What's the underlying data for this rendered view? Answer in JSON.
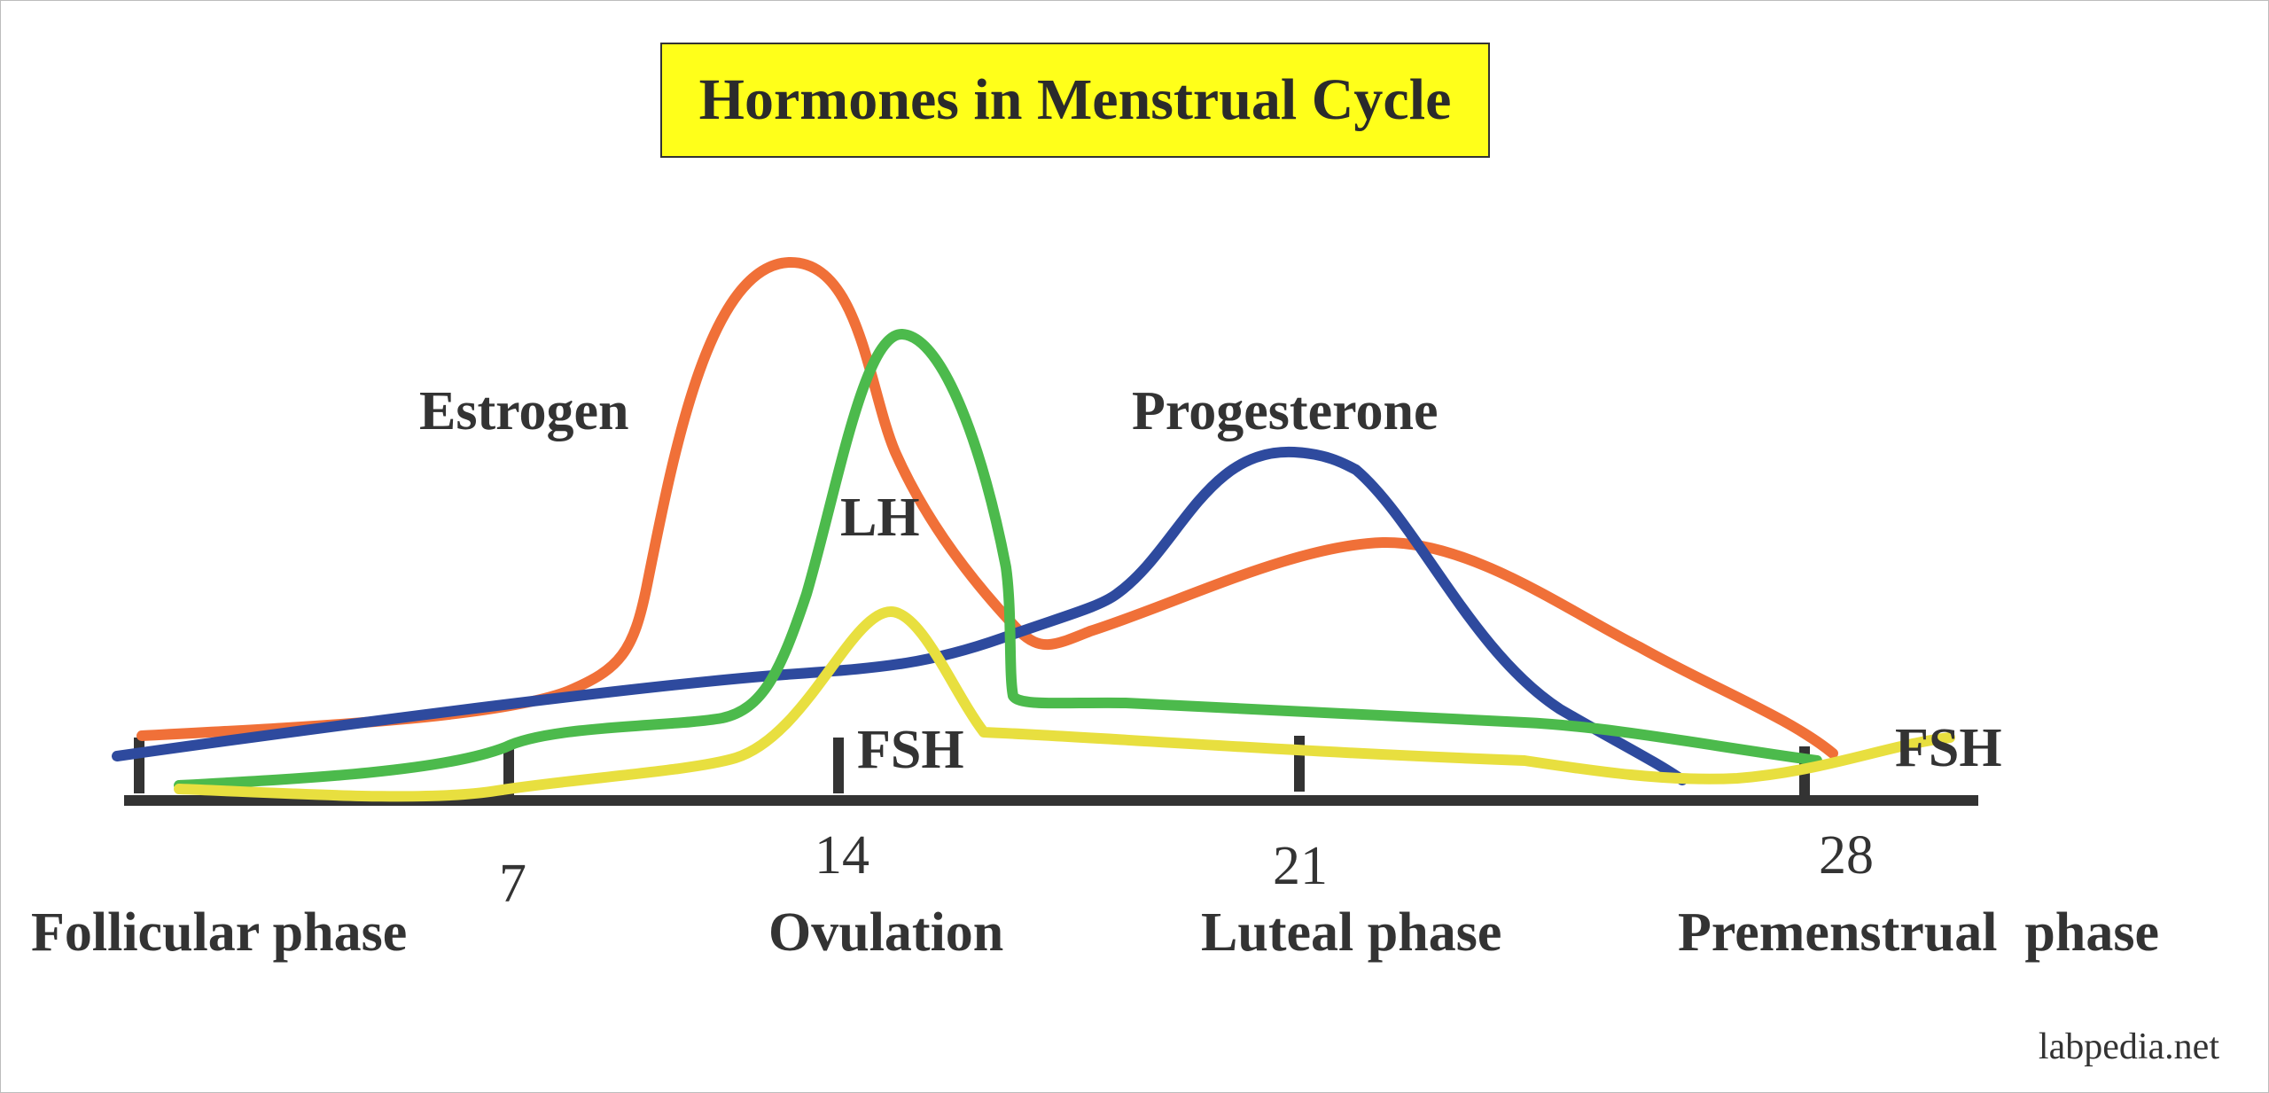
{
  "title": "Hormones in Menstrual Cycle",
  "colors": {
    "estrogen": "#f07038",
    "lh": "#4cba4c",
    "progesterone": "#2e4a9e",
    "fsh": "#e8df3f",
    "axis": "#333333",
    "title_bg": "#ffff1a"
  },
  "hormone_labels": {
    "estrogen": "Estrogen",
    "lh": "LH",
    "progesterone": "Progesterone",
    "fsh_mid": "FSH",
    "fsh_end": "FSH"
  },
  "axis": {
    "ticks": [
      "7",
      "14",
      "21",
      "28"
    ]
  },
  "phases": {
    "follicular": "Follicular phase",
    "ovulation": "Ovulation",
    "luteal": "Luteal phase",
    "premenstrual": "Premenstrual  phase"
  },
  "watermark": "labpedia.net"
}
